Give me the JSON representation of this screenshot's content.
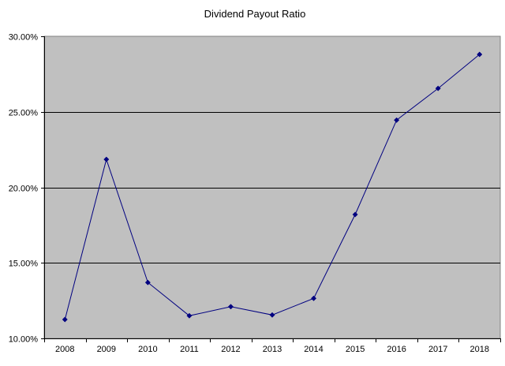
{
  "chart_data": {
    "type": "line",
    "title": "Dividend Payout Ratio",
    "xlabel": "",
    "ylabel": "",
    "categories": [
      "2008",
      "2009",
      "2010",
      "2011",
      "2012",
      "2013",
      "2014",
      "2015",
      "2016",
      "2017",
      "2018"
    ],
    "series": [
      {
        "values": [
          11.25,
          21.85,
          13.7,
          11.5,
          12.1,
          11.55,
          12.65,
          18.2,
          24.45,
          26.55,
          28.8
        ],
        "color": "#000080",
        "marker": "diamond"
      }
    ],
    "ylim": [
      10,
      30
    ],
    "yticks": [
      10,
      15,
      20,
      25,
      30
    ],
    "ytick_labels": [
      "10.00%",
      "15.00%",
      "20.00%",
      "25.00%",
      "30.00%"
    ],
    "grid": "horizontal",
    "plot_background": "#c0c0c0",
    "legend": "none"
  }
}
